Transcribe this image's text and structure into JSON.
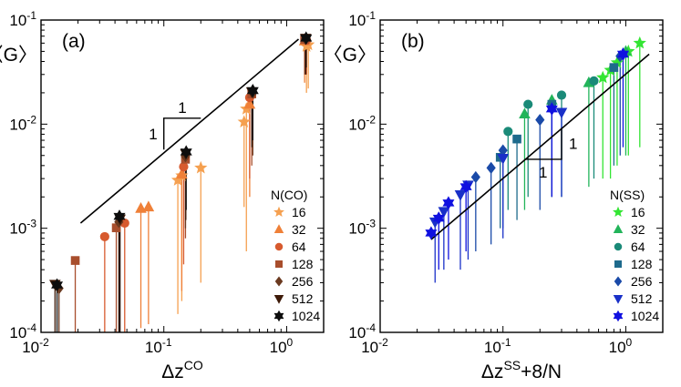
{
  "chart_data": [
    {
      "type": "scatter",
      "panel_label": "(a)",
      "ylabel": "〈G〉",
      "xlabel_base": "Δz",
      "xlabel_sup": "CO",
      "xlabel_tail": "",
      "log_x": true,
      "log_y": true,
      "xlim": [
        0.01,
        2
      ],
      "ylim": [
        0.0001,
        0.1
      ],
      "x_ticks": [
        {
          "value": 0.01,
          "base": "10",
          "exp": "-2"
        },
        {
          "value": 0.1,
          "base": "10",
          "exp": "-1"
        },
        {
          "value": 1,
          "base": "10",
          "exp": "0"
        }
      ],
      "y_ticks": [
        {
          "value": 0.0001,
          "base": "10",
          "exp": "-4"
        },
        {
          "value": 0.001,
          "base": "10",
          "exp": "-3"
        },
        {
          "value": 0.01,
          "base": "10",
          "exp": "-2"
        },
        {
          "value": 0.1,
          "base": "10",
          "exp": "-1"
        }
      ],
      "legend_title": "N(CO)",
      "legend_position": "bottom-right",
      "fit_line": {
        "x": [
          0.021,
          1.25
        ],
        "y": [
          0.00112,
          0.0655
        ]
      },
      "slope_triangle": {
        "x": [
          0.1,
          0.2
        ],
        "y": [
          0.0057,
          0.0114
        ],
        "label_run": "1",
        "label_rise": "1",
        "orientation": "upper"
      },
      "series": [
        {
          "name": "16",
          "marker": "star",
          "color": "#f5a050",
          "points": [
            [
              0.13,
              0.0029
            ],
            [
              0.2,
              0.0038
            ],
            [
              0.45,
              0.0105
            ],
            [
              1.45,
              0.056
            ],
            [
              0.14,
              0.0032
            ],
            [
              0.47,
              0.014
            ],
            [
              1.5,
              0.058
            ]
          ],
          "err_low": [
            0.00015,
            0.0003,
            0.0016,
            0.02,
            0.0002,
            0.0006,
            0.022
          ]
        },
        {
          "name": "32",
          "marker": "triangle-up",
          "color": "#ef8038",
          "points": [
            [
              0.065,
              0.00155
            ],
            [
              0.075,
              0.0016
            ],
            [
              0.14,
              0.0033
            ],
            [
              0.5,
              0.0155
            ],
            [
              1.4,
              0.063
            ]
          ],
          "err_low": [
            0.00011,
            0.00012,
            0.00025,
            0.002,
            0.025
          ]
        },
        {
          "name": "64",
          "marker": "circle",
          "color": "#d75a2e",
          "points": [
            [
              0.033,
              0.00083
            ],
            [
              0.048,
              0.00112
            ],
            [
              0.145,
              0.0039
            ],
            [
              0.5,
              0.018
            ],
            [
              1.45,
              0.064
            ]
          ],
          "err_low": [
            0.0001,
            0.0001,
            0.00045,
            0.003,
            0.03
          ]
        },
        {
          "name": "128",
          "marker": "square",
          "color": "#a84e2c",
          "points": [
            [
              0.019,
              0.00049
            ],
            [
              0.041,
              0.00101
            ],
            [
              0.15,
              0.0046
            ],
            [
              0.52,
              0.0195
            ],
            [
              1.4,
              0.065
            ]
          ],
          "err_low": [
            0.0001,
            0.0001,
            0.0008,
            0.004,
            0.03
          ]
        },
        {
          "name": "256",
          "marker": "diamond",
          "color": "#6b3a20",
          "points": [
            [
              0.014,
              0.000265
            ],
            [
              0.043,
              0.00115
            ],
            [
              0.15,
              0.0049
            ],
            [
              0.53,
              0.02
            ],
            [
              1.42,
              0.066
            ]
          ],
          "err_low": [
            0.0001,
            0.0001,
            0.001,
            0.005,
            0.03
          ]
        },
        {
          "name": "512",
          "marker": "triangle-down",
          "color": "#3d1a08",
          "points": [
            [
              0.013,
              0.00029
            ],
            [
              0.044,
              0.00123
            ],
            [
              0.151,
              0.0052
            ],
            [
              0.52,
              0.0205
            ],
            [
              1.43,
              0.067
            ]
          ],
          "err_low": [
            0.0001,
            0.0001,
            0.0012,
            0.006,
            0.03
          ]
        },
        {
          "name": "1024",
          "marker": "star6",
          "color": "#0d0d0d",
          "points": [
            [
              0.0135,
              0.000285
            ],
            [
              0.0435,
              0.0013
            ],
            [
              0.152,
              0.0054
            ],
            [
              0.53,
              0.021
            ],
            [
              1.44,
              0.067
            ]
          ],
          "err_low": [
            0.0001,
            0.0001,
            0.0015,
            0.007,
            0.035
          ]
        }
      ]
    },
    {
      "type": "scatter",
      "panel_label": "(b)",
      "ylabel": "〈G〉",
      "xlabel_base": "Δz",
      "xlabel_sup": "SS",
      "xlabel_tail": "+8/N",
      "log_x": true,
      "log_y": true,
      "xlim": [
        0.01,
        2
      ],
      "ylim": [
        0.0001,
        0.1
      ],
      "x_ticks": [
        {
          "value": 0.01,
          "base": "10",
          "exp": "-2"
        },
        {
          "value": 0.1,
          "base": "10",
          "exp": "-1"
        },
        {
          "value": 1,
          "base": "10",
          "exp": "0"
        }
      ],
      "y_ticks": [
        {
          "value": 0.0001,
          "base": "10",
          "exp": "-4"
        },
        {
          "value": 0.001,
          "base": "10",
          "exp": "-3"
        },
        {
          "value": 0.01,
          "base": "10",
          "exp": "-2"
        },
        {
          "value": 0.1,
          "base": "10",
          "exp": "-1"
        }
      ],
      "legend_title": "N(SS)",
      "legend_position": "bottom-right",
      "fit_line": {
        "x": [
          0.026,
          1.55
        ],
        "y": [
          0.00078,
          0.047
        ]
      },
      "slope_triangle": {
        "x": [
          0.15,
          0.3
        ],
        "y": [
          0.0046,
          0.0092
        ],
        "label_run": "1",
        "label_rise": "1",
        "orientation": "lower"
      },
      "series": [
        {
          "name": "16",
          "marker": "star",
          "color": "#33e533",
          "points": [
            [
              0.65,
              0.028
            ],
            [
              0.75,
              0.033
            ],
            [
              1.05,
              0.05
            ],
            [
              1.3,
              0.06
            ],
            [
              0.85,
              0.039
            ]
          ],
          "err_low": [
            0.003,
            0.003,
            0.005,
            0.006,
            0.004
          ]
        },
        {
          "name": "32",
          "marker": "triangle-up",
          "color": "#22b45a",
          "points": [
            [
              0.15,
              0.0125
            ],
            [
              0.25,
              0.017
            ],
            [
              0.5,
              0.025
            ],
            [
              1.0,
              0.05
            ]
          ],
          "err_low": [
            0.0015,
            0.002,
            0.0025,
            0.005
          ]
        },
        {
          "name": "64",
          "marker": "circle",
          "color": "#1a8a78",
          "points": [
            [
              0.11,
              0.0085
            ],
            [
              0.16,
              0.0155
            ],
            [
              0.3,
              0.019
            ],
            [
              0.55,
              0.026
            ]
          ],
          "err_low": [
            0.0015,
            0.002,
            0.002,
            0.003
          ]
        },
        {
          "name": "128",
          "marker": "square",
          "color": "#1e6a8c",
          "points": [
            [
              0.095,
              0.0048
            ],
            [
              0.13,
              0.0072
            ],
            [
              0.25,
              0.0155
            ],
            [
              0.8,
              0.035
            ]
          ],
          "err_low": [
            0.001,
            0.0012,
            0.002,
            0.004
          ]
        },
        {
          "name": "256",
          "marker": "diamond",
          "color": "#1a4aa8",
          "points": [
            [
              0.06,
              0.0031
            ],
            [
              0.08,
              0.0038
            ],
            [
              0.1,
              0.0056
            ],
            [
              0.2,
              0.011
            ],
            [
              0.9,
              0.045
            ]
          ],
          "err_low": [
            0.0006,
            0.0007,
            0.001,
            0.0015,
            0.005
          ]
        },
        {
          "name": "512",
          "marker": "triangle-down",
          "color": "#1930c8",
          "points": [
            [
              0.028,
              0.00115
            ],
            [
              0.033,
              0.00145
            ],
            [
              0.045,
              0.0021
            ],
            [
              0.052,
              0.0026
            ],
            [
              0.1,
              0.0047
            ],
            [
              0.3,
              0.013
            ]
          ],
          "err_low": [
            0.0003,
            0.0004,
            0.0004,
            0.0005,
            0.0008,
            0.002
          ]
        },
        {
          "name": "1024",
          "marker": "star6",
          "color": "#1010e0",
          "points": [
            [
              0.026,
              0.0009
            ],
            [
              0.03,
              0.00125
            ],
            [
              0.036,
              0.00175
            ],
            [
              0.05,
              0.0025
            ],
            [
              0.25,
              0.014
            ],
            [
              0.95,
              0.047
            ]
          ],
          "err_low": [
            0.0008,
            0.0004,
            0.0005,
            0.0006,
            0.002,
            0.006
          ]
        }
      ]
    }
  ]
}
